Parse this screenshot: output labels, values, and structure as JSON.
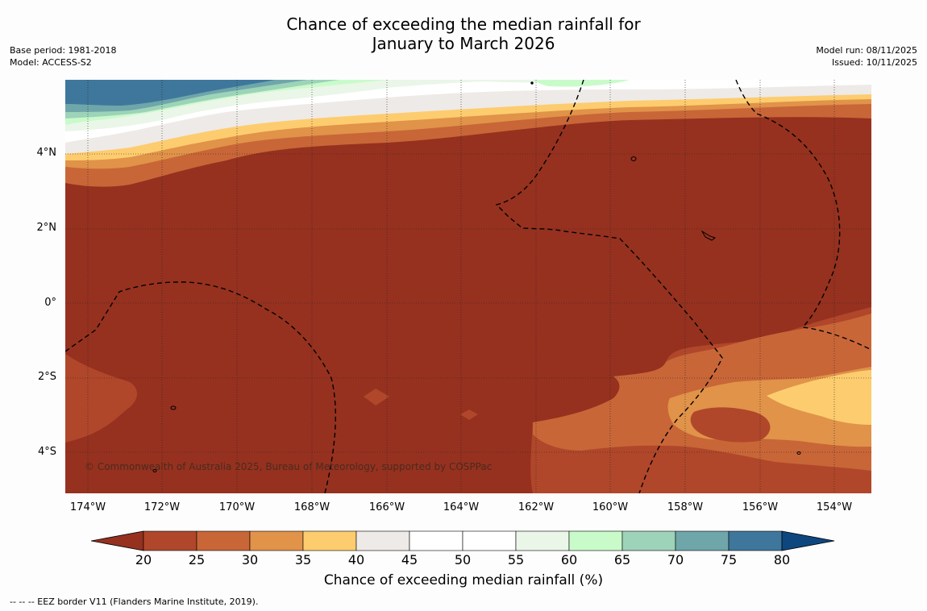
{
  "title": {
    "line1": "Chance of exceeding the median rainfall for",
    "line2": "January to March 2026"
  },
  "meta_left": {
    "base_period": "Base period: 1981-2018",
    "model": "Model: ACCESS-S2"
  },
  "meta_right": {
    "model_run": "Model run: 08/11/2025",
    "issued": "Issued: 10/11/2025"
  },
  "map": {
    "latitude_labels": [
      "4°N",
      "2°N",
      "0°",
      "2°S",
      "4°S"
    ],
    "longitude_labels": [
      "174°W",
      "172°W",
      "170°W",
      "168°W",
      "166°W",
      "164°W",
      "162°W",
      "160°W",
      "158°W",
      "156°W",
      "154°W"
    ],
    "copyright": "© Commonwealth of Australia 2025, Bureau of Meteorology, supported by COSPPac",
    "colors": {
      "dominant": "#96311f",
      "c20_25": "#b0472a",
      "c25_30": "#c86638",
      "c30_35": "#e09349",
      "c35_40": "#fdcc6e",
      "c40_45": "#eeeae7",
      "c45_55": "#ffffff",
      "c55_60": "#eaf6e8",
      "c60_65": "#c9fbca",
      "c65_70": "#9dd3b8",
      "c70_75": "#6ea6aa",
      "c75_80": "#3e779b",
      "over80": "#0e477f"
    }
  },
  "colorbar": {
    "ticks": [
      "20",
      "25",
      "30",
      "35",
      "40",
      "45",
      "50",
      "55",
      "60",
      "65",
      "70",
      "75",
      "80"
    ],
    "label": "Chance of exceeding median rainfall (%)"
  },
  "footnote": "--  --  -- EEZ border V11 (Flanders Marine Institute, 2019)."
}
